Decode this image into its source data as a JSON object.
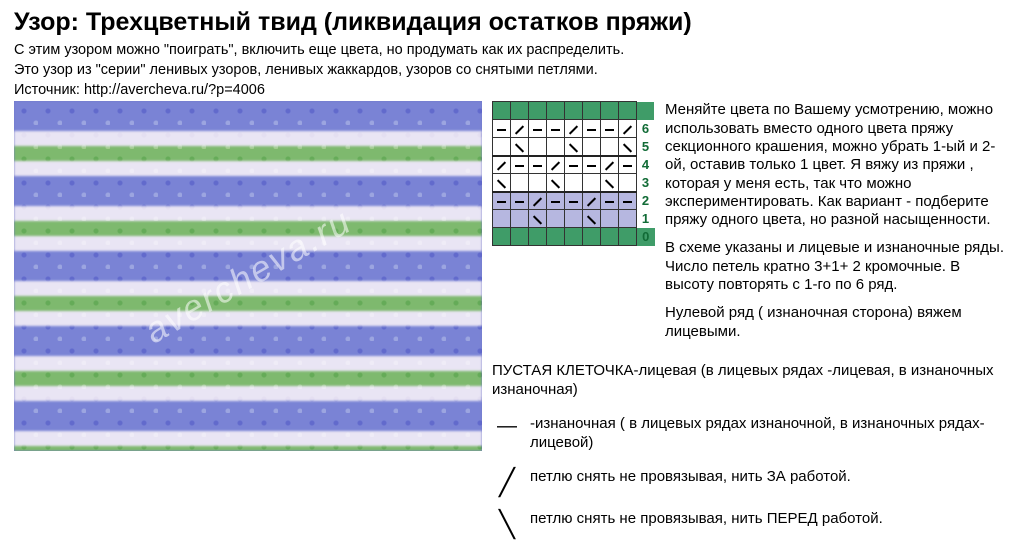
{
  "title": "Узор: Трехцветный твид (ликвидация остатков пряжи)",
  "intro1": "С этим узором можно \"поиграть\", включить еще цвета, но продумать как их распределить.",
  "intro2": "Это узор из \"серии\" ленивых узоров, ленивых жаккардов, узоров со снятыми петлями.",
  "source_label": "Источник: http://avercheva.ru/?p=4006",
  "watermark": "avercheva.ru",
  "chart": {
    "cols": 8,
    "rows": 6,
    "row_labels": [
      "6",
      "5",
      "4",
      "3",
      "2",
      "1",
      "0"
    ],
    "header_color": "#3f9c68",
    "row_bg": {
      "6": "#ffffff",
      "5": "#ffffff",
      "4": "#ffffff",
      "3": "#ffffff",
      "2": "#b6b7e0",
      "1": "#b6b7e0"
    },
    "cells": {
      "6": [
        "dash",
        "back",
        "dash",
        "dash",
        "back",
        "dash",
        "dash",
        "back"
      ],
      "5": [
        "",
        "fwd",
        "",
        "",
        "fwd",
        "",
        "",
        "fwd"
      ],
      "4": [
        "back",
        "dash",
        "dash",
        "back",
        "dash",
        "dash",
        "back",
        "dash"
      ],
      "3": [
        "fwd",
        "",
        "",
        "fwd",
        "",
        "",
        "fwd",
        ""
      ],
      "2": [
        "dash",
        "dash",
        "back",
        "dash",
        "dash",
        "back",
        "dash",
        "dash"
      ],
      "1": [
        "",
        "",
        "fwd",
        "",
        "",
        "fwd",
        "",
        ""
      ]
    }
  },
  "desc": {
    "p1": "Меняйте цвета по Вашему усмотрению, можно использовать вместо одного цвета пряжу секционного крашения, можно убрать 1-ый и 2-ой, оставив только 1 цвет. Я вяжу из пряжи , которая у меня есть, так что можно экспериментировать. Как вариант - подберите пряжу одного цвета, но разной насыщенности.",
    "p2": "В схеме указаны и лицевые и изнаночные ряды. Число петель кратно 3+1+ 2 кромочные. В высоту повторять с 1-го по 6 ряд.",
    "p3": "Нулевой ряд ( изнаночная сторона) вяжем лицевыми."
  },
  "legend": {
    "empty": "ПУСТАЯ КЛЕТОЧКА-лицевая (в лицевых рядах -лицевая, в изнаночных изнаночная)",
    "dash": "-изнаночная ( в лицевых рядах изнаночной, в изнаночных рядах- лицевой)",
    "fwd": "петлю снять не провязывая, нить ЗА работой.",
    "back": "петлю снять не провязывая, нить ПЕРЕД работой."
  }
}
